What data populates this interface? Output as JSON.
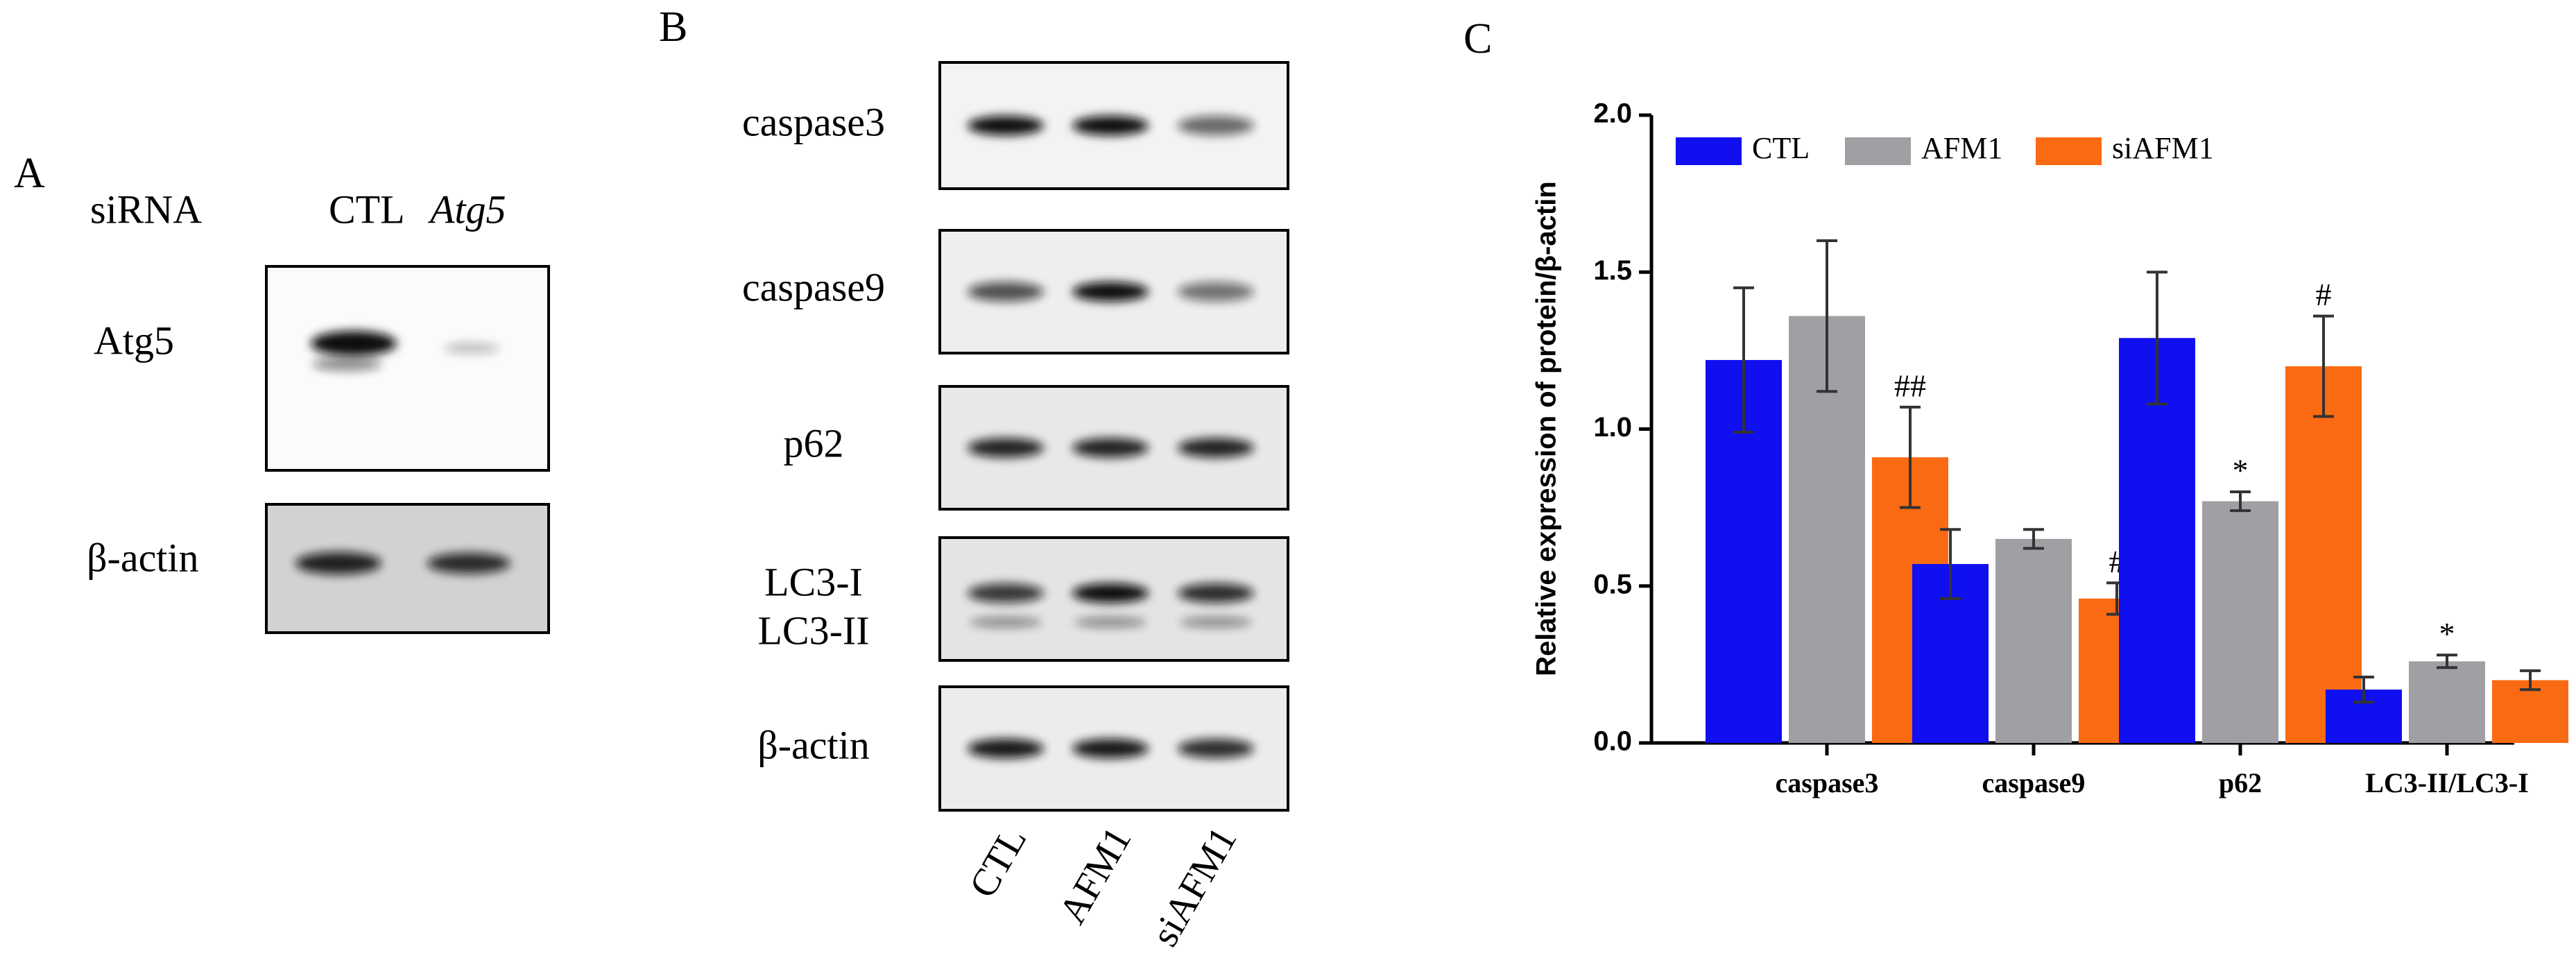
{
  "panel_a": {
    "label": "A",
    "header": [
      "siRNA",
      "CTL",
      "Atg5"
    ],
    "rows": [
      "Atg5",
      "β-actin"
    ]
  },
  "panel_b": {
    "label": "B",
    "rows": [
      "caspase3",
      "caspase9",
      "p62",
      "LC3-I",
      "LC3-II",
      "β-actin"
    ],
    "lanes": [
      "CTL",
      "AFM1",
      "siAFM1"
    ]
  },
  "panel_c": {
    "label": "C"
  },
  "chart_data": {
    "type": "bar",
    "y_label": "Relative expression of protein/β-actin",
    "categories": [
      "caspase3",
      "caspase9",
      "p62",
      "LC3-II/LC3-I"
    ],
    "series": [
      {
        "name": "CTL",
        "color": "#0f0ff0",
        "values": [
          1.22,
          0.57,
          1.29,
          0.17
        ],
        "errors": [
          0.23,
          0.11,
          0.21,
          0.04
        ],
        "annotations": [
          null,
          null,
          null,
          null
        ]
      },
      {
        "name": "AFM1",
        "color": "#a0a0a4",
        "values": [
          1.36,
          0.65,
          0.77,
          0.26
        ],
        "errors": [
          0.24,
          0.03,
          0.03,
          0.02
        ],
        "annotations": [
          null,
          null,
          "*",
          "*"
        ]
      },
      {
        "name": "siAFM1",
        "color": "#fa6a12",
        "values": [
          0.91,
          0.46,
          1.2,
          0.2
        ],
        "errors": [
          0.16,
          0.05,
          0.16,
          0.03
        ],
        "annotations": [
          "##",
          "#",
          "#",
          null
        ]
      }
    ],
    "ylim": [
      0,
      2
    ],
    "yticks": [
      {
        "value": 0,
        "label": "0.0"
      },
      0.5,
      {
        "value": 1,
        "label": "1.0"
      },
      1.5,
      {
        "value": 2,
        "label": "2.0"
      }
    ],
    "legend": "top-left"
  }
}
